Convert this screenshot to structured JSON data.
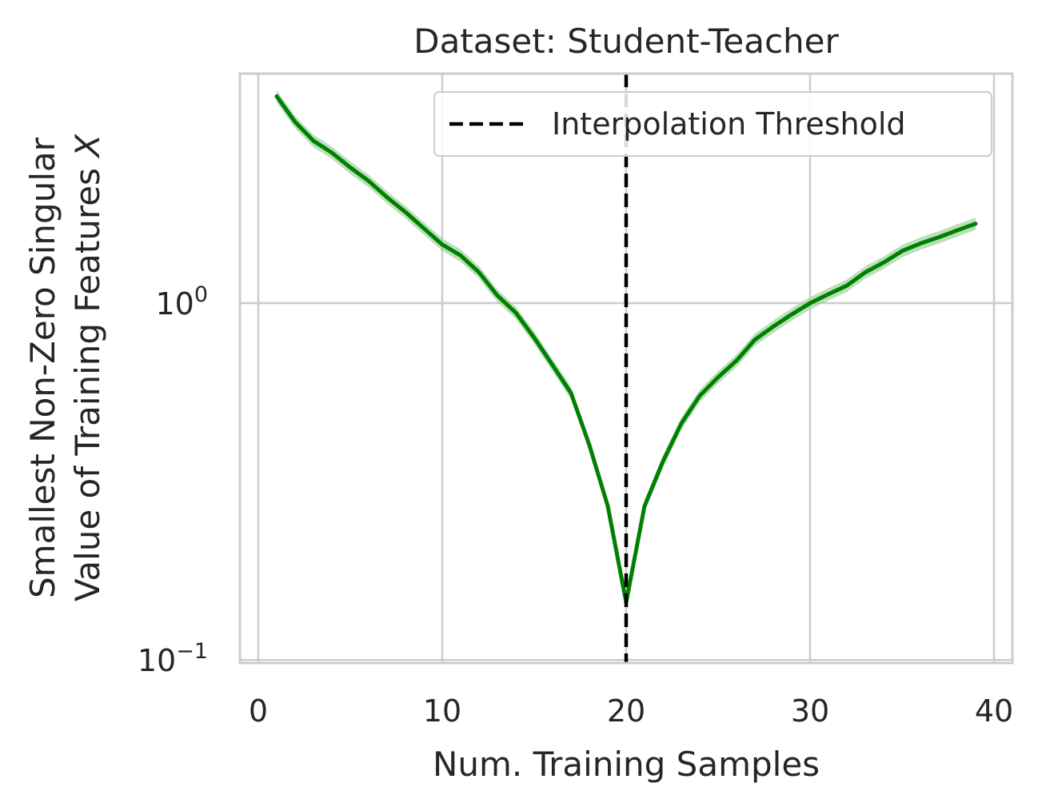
{
  "chart_data": {
    "type": "line",
    "title": "Dataset: Student-Teacher",
    "xlabel": "Num. Training Samples",
    "ylabel_lines": [
      "Smallest Non-Zero Singular",
      "Value of Training Features X"
    ],
    "ylabel_italic_suffix": "X",
    "yscale": "log",
    "xlim": [
      -1,
      41
    ],
    "ylim": [
      0.098,
      4.4
    ],
    "xticks": [
      0,
      10,
      20,
      30,
      40
    ],
    "xtick_labels": [
      "0",
      "10",
      "20",
      "30",
      "40"
    ],
    "yticks": [
      {
        "value": 1.0,
        "base": "10",
        "exp": "0"
      },
      {
        "value": 0.1,
        "base": "10",
        "exp": "−1"
      }
    ],
    "grid": true,
    "series": [
      {
        "color": "#008000",
        "band_color": "#9dd39d",
        "x": [
          1,
          2,
          3,
          4,
          5,
          6,
          7,
          8,
          9,
          10,
          11,
          12,
          13,
          14,
          15,
          16,
          17,
          18,
          19,
          20,
          21,
          22,
          23,
          24,
          25,
          26,
          27,
          28,
          29,
          30,
          31,
          32,
          33,
          34,
          35,
          36,
          37,
          38,
          39
        ],
        "y": [
          3.8,
          3.22,
          2.85,
          2.64,
          2.4,
          2.2,
          1.98,
          1.8,
          1.62,
          1.46,
          1.36,
          1.22,
          1.05,
          0.94,
          0.8,
          0.67,
          0.56,
          0.4,
          0.27,
          0.145,
          0.27,
          0.36,
          0.46,
          0.55,
          0.62,
          0.69,
          0.79,
          0.86,
          0.93,
          1.0,
          1.06,
          1.12,
          1.22,
          1.3,
          1.4,
          1.47,
          1.53,
          1.6,
          1.67
        ],
        "band_halfwidth_frac": 0.04
      }
    ],
    "vlines": [
      {
        "x": 20,
        "style": "dashed",
        "color": "#000000",
        "label": "Interpolation Threshold"
      }
    ],
    "legend": {
      "position": "top-right",
      "entries": [
        "Interpolation Threshold"
      ]
    }
  }
}
